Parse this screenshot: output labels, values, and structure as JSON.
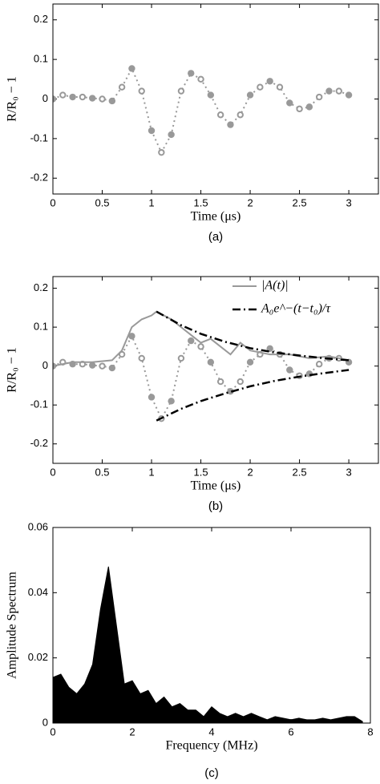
{
  "chart_data": [
    {
      "type": "line",
      "caption": "(a)",
      "xlabel": "Time (μs)",
      "ylabel": "R/R₀ − 1",
      "xlim": [
        0,
        3.3
      ],
      "xticks": [
        0,
        0.5,
        1,
        1.5,
        2,
        2.5,
        3
      ],
      "ylim": [
        -0.24,
        0.24
      ],
      "yticks": [
        -0.2,
        -0.1,
        0,
        0.1,
        0.2
      ],
      "series": [
        {
          "style": "dotted-markers",
          "color": "#999999",
          "x": [
            0,
            0.1,
            0.2,
            0.3,
            0.4,
            0.5,
            0.6,
            0.7,
            0.8,
            0.9,
            1.0,
            1.1,
            1.2,
            1.3,
            1.4,
            1.5,
            1.6,
            1.7,
            1.8,
            1.9,
            2.0,
            2.1,
            2.2,
            2.3,
            2.4,
            2.5,
            2.6,
            2.7,
            2.8,
            2.9,
            3.0
          ],
          "values": [
            0,
            0.01,
            0.005,
            0.005,
            0.002,
            0,
            -0.005,
            0.03,
            0.077,
            0.02,
            -0.08,
            -0.135,
            -0.09,
            0.02,
            0.065,
            0.05,
            0.01,
            -0.04,
            -0.065,
            -0.04,
            0.01,
            0.03,
            0.045,
            0.03,
            -0.01,
            -0.025,
            -0.02,
            0.005,
            0.02,
            0.02,
            0.01
          ]
        }
      ]
    },
    {
      "type": "line",
      "caption": "(b)",
      "xlabel": "Time (μs)",
      "ylabel": "R/R₀ − 1",
      "xlim": [
        0,
        3.3
      ],
      "xticks": [
        0,
        0.5,
        1,
        1.5,
        2,
        2.5,
        3
      ],
      "ylim": [
        -0.25,
        0.23
      ],
      "yticks": [
        -0.2,
        -0.1,
        0,
        0.1,
        0.2
      ],
      "series": [
        {
          "style": "dotted-markers",
          "color": "#999999",
          "x": [
            0,
            0.1,
            0.2,
            0.3,
            0.4,
            0.5,
            0.6,
            0.7,
            0.8,
            0.9,
            1.0,
            1.1,
            1.2,
            1.3,
            1.4,
            1.5,
            1.6,
            1.7,
            1.8,
            1.9,
            2.0,
            2.1,
            2.2,
            2.3,
            2.4,
            2.5,
            2.6,
            2.7,
            2.8,
            2.9,
            3.0
          ],
          "values": [
            0,
            0.01,
            0.005,
            0.005,
            0.002,
            0,
            -0.005,
            0.03,
            0.077,
            0.02,
            -0.08,
            -0.135,
            -0.09,
            0.02,
            0.065,
            0.05,
            0.01,
            -0.04,
            -0.065,
            -0.04,
            0.01,
            0.03,
            0.045,
            0.03,
            -0.01,
            -0.025,
            -0.02,
            0.005,
            0.02,
            0.02,
            0.01
          ]
        },
        {
          "name": "|A(t)|",
          "style": "solid",
          "color": "#999999",
          "x": [
            0,
            0.2,
            0.4,
            0.6,
            0.7,
            0.8,
            0.9,
            1.0,
            1.05,
            1.2,
            1.3,
            1.4,
            1.5,
            1.6,
            1.7,
            1.8,
            1.9,
            2.0,
            2.2,
            2.4,
            2.6,
            2.8,
            3.0
          ],
          "values": [
            0,
            0.01,
            0.01,
            0.015,
            0.04,
            0.1,
            0.12,
            0.13,
            0.14,
            0.12,
            0.1,
            0.08,
            0.06,
            0.07,
            0.05,
            0.03,
            0.06,
            0.04,
            0.03,
            0.03,
            0.02,
            0.025,
            0.015
          ]
        },
        {
          "name": "A₀e^−(t−t₀)/τ",
          "style": "dashdot",
          "color": "#000000",
          "x": [
            1.05,
            1.3,
            1.5,
            1.75,
            2.0,
            2.25,
            2.5,
            2.75,
            3.0
          ],
          "values": [
            0.14,
            0.105,
            0.083,
            0.062,
            0.046,
            0.035,
            0.027,
            0.02,
            0.015
          ]
        },
        {
          "style": "dashdot",
          "color": "#000000",
          "x": [
            1.05,
            1.3,
            1.5,
            1.75,
            2.0,
            2.25,
            2.5,
            2.75,
            3.0
          ],
          "values": [
            -0.14,
            -0.11,
            -0.09,
            -0.07,
            -0.052,
            -0.038,
            -0.027,
            -0.018,
            -0.01
          ]
        }
      ]
    },
    {
      "type": "area",
      "caption": "(c)",
      "xlabel": "Frequency (MHz)",
      "ylabel": "Amplitude Spectrum",
      "xlim": [
        0,
        8
      ],
      "xticks": [
        0,
        2,
        4,
        6,
        8
      ],
      "ylim": [
        0,
        0.06
      ],
      "yticks": [
        0,
        0.02,
        0.04,
        0.06
      ],
      "series": [
        {
          "color": "#000000",
          "x": [
            0,
            0.2,
            0.4,
            0.6,
            0.8,
            1.0,
            1.2,
            1.4,
            1.6,
            1.8,
            2.0,
            2.2,
            2.4,
            2.6,
            2.8,
            3.0,
            3.2,
            3.4,
            3.6,
            3.8,
            4.0,
            4.2,
            4.4,
            4.6,
            4.8,
            5.0,
            5.2,
            5.4,
            5.6,
            5.8,
            6.0,
            6.2,
            6.4,
            6.6,
            6.8,
            7.0,
            7.2,
            7.4,
            7.6,
            7.8
          ],
          "values": [
            0.014,
            0.015,
            0.011,
            0.009,
            0.012,
            0.018,
            0.035,
            0.048,
            0.03,
            0.012,
            0.013,
            0.009,
            0.01,
            0.006,
            0.008,
            0.005,
            0.006,
            0.004,
            0.004,
            0.002,
            0.005,
            0.003,
            0.002,
            0.003,
            0.002,
            0.003,
            0.002,
            0.001,
            0.002,
            0.0015,
            0.001,
            0.0015,
            0.001,
            0.001,
            0.0015,
            0.001,
            0.0015,
            0.002,
            0.002,
            0.0005
          ]
        }
      ]
    }
  ]
}
